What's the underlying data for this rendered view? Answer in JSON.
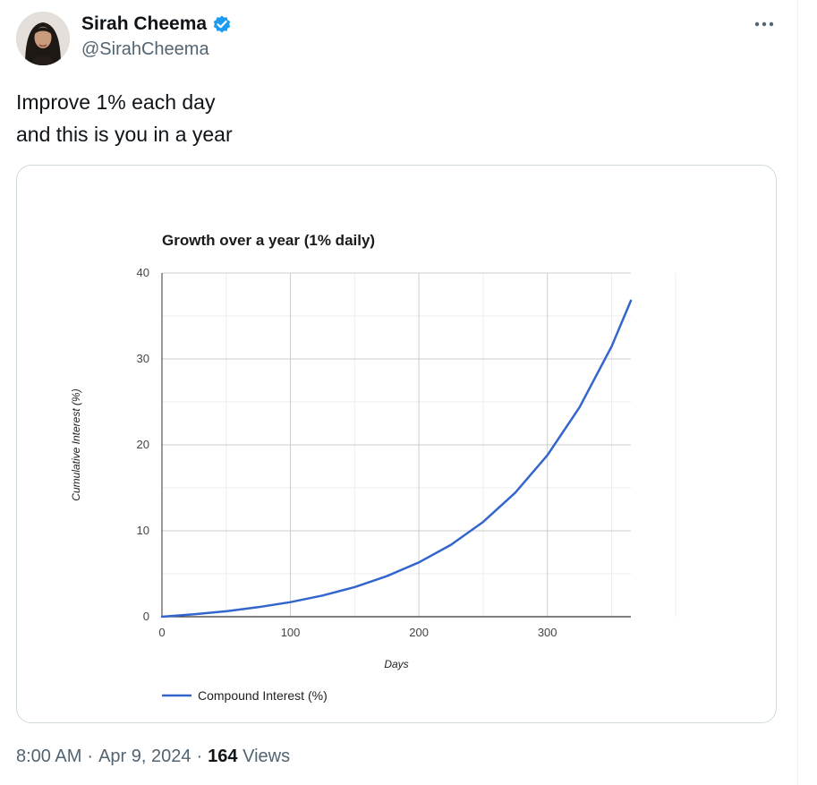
{
  "author": {
    "display_name": "Sirah Cheema",
    "handle": "@SirahCheema",
    "verified_icon": "verified-badge-icon",
    "verified_color": "#1d9bf0"
  },
  "tweet": {
    "text_lines": [
      "Improve 1% each day",
      "and this is you in a year"
    ]
  },
  "meta": {
    "time": "8:00 AM",
    "date": "Apr 9, 2024",
    "separator": "·",
    "views_count": "164",
    "views_label": "Views"
  },
  "more_icon": "more-options-icon",
  "chart_data": {
    "type": "line",
    "title": "Growth over a year (1% daily)",
    "xlabel": "Days",
    "ylabel": "Cumulative Interest (%)",
    "xlim": [
      0,
      365
    ],
    "ylim": [
      0,
      40
    ],
    "x_ticks": [
      0,
      100,
      200,
      300
    ],
    "y_ticks": [
      0,
      10,
      20,
      30,
      40
    ],
    "grid": true,
    "legend_position": "bottom-left",
    "series": [
      {
        "name": "Compound Interest (%)",
        "color": "#3366cc",
        "x": [
          0,
          25,
          50,
          75,
          100,
          125,
          150,
          175,
          200,
          225,
          250,
          275,
          300,
          325,
          350,
          365
        ],
        "y": [
          0,
          0.28,
          0.64,
          1.11,
          1.7,
          2.47,
          3.45,
          4.72,
          6.32,
          8.38,
          11.03,
          14.44,
          18.79,
          24.36,
          31.46,
          36.78
        ]
      }
    ]
  }
}
